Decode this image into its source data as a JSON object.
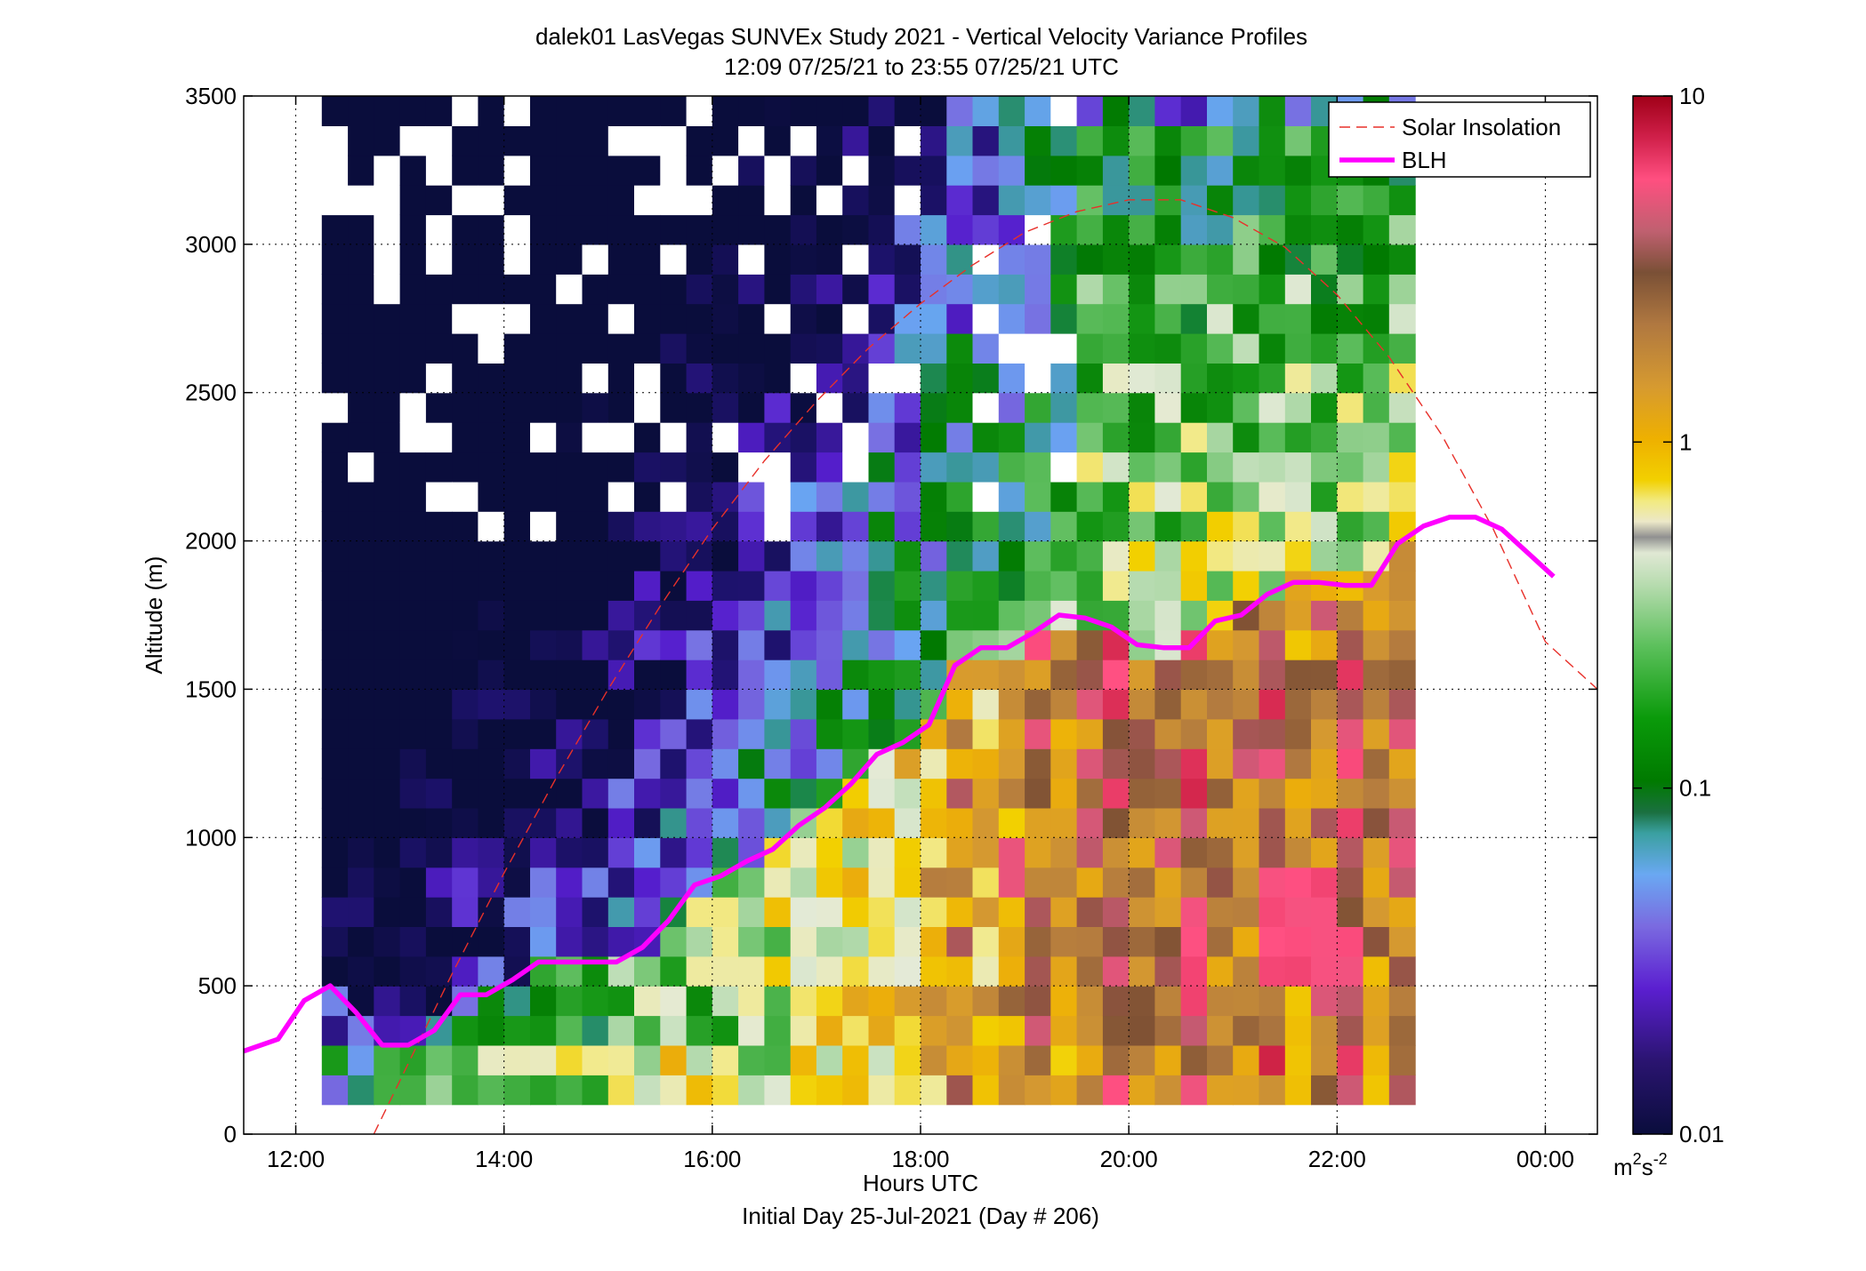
{
  "chart_data": {
    "type": "heatmap",
    "title": "dalek01 LasVegas SUNVEx Study 2021 - Vertical Velocity Variance Profiles",
    "subtitle": "12:09 07/25/21 to 23:55 07/25/21  UTC",
    "xlabel": "Hours UTC",
    "xlabel2": "Initial Day 25-Jul-2021 (Day # 206)",
    "ylabel": "Altitude (m)",
    "xlim": [
      11.5,
      24.5
    ],
    "ylim": [
      0,
      3500
    ],
    "x_ticks": [
      12,
      14,
      16,
      18,
      20,
      22,
      24
    ],
    "x_tick_labels": [
      "12:00",
      "14:00",
      "16:00",
      "18:00",
      "20:00",
      "22:00",
      "00:00"
    ],
    "y_ticks": [
      0,
      500,
      1000,
      1500,
      2000,
      2500,
      3000,
      3500
    ],
    "y_tick_labels": [
      "0",
      "500",
      "1000",
      "1500",
      "2000",
      "2500",
      "3000",
      "3500"
    ],
    "grid": true,
    "legend_position": "top-right",
    "legend": [
      {
        "name": "Solar Insolation",
        "color": "#e8302a",
        "style": "dashed"
      },
      {
        "name": "BLH",
        "color": "#ff00ff",
        "style": "solid"
      }
    ],
    "colorbar": {
      "scale": "log",
      "range": [
        0.01,
        10
      ],
      "tick_values": [
        0.01,
        0.1,
        1,
        10
      ],
      "tick_labels": [
        "0.01",
        "0.1",
        "1",
        "10"
      ],
      "unit_base": "m",
      "unit_sup1": "2",
      "unit_mid": "s",
      "unit_sup2": "-2"
    },
    "blh": {
      "name": "BLH",
      "x": [
        11.5,
        11.83,
        12.08,
        12.33,
        12.58,
        12.83,
        13.08,
        13.33,
        13.58,
        13.83,
        14.08,
        14.33,
        14.58,
        14.83,
        15.08,
        15.33,
        15.58,
        15.83,
        16.08,
        16.33,
        16.58,
        16.83,
        17.08,
        17.33,
        17.58,
        17.83,
        18.08,
        18.33,
        18.58,
        18.83,
        19.08,
        19.33,
        19.58,
        19.83,
        20.08,
        20.33,
        20.58,
        20.83,
        21.08,
        21.33,
        21.58,
        21.83,
        22.08,
        22.33,
        22.58,
        22.83,
        23.08,
        23.33,
        23.58,
        23.83,
        24.08
      ],
      "y": [
        280,
        320,
        450,
        500,
        410,
        300,
        300,
        350,
        470,
        470,
        520,
        580,
        580,
        580,
        580,
        630,
        720,
        840,
        870,
        920,
        960,
        1040,
        1100,
        1180,
        1280,
        1320,
        1380,
        1580,
        1640,
        1640,
        1690,
        1750,
        1740,
        1710,
        1650,
        1640,
        1640,
        1730,
        1750,
        1820,
        1860,
        1860,
        1850,
        1850,
        1990,
        2050,
        2080,
        2080,
        2040,
        1960,
        1880
      ]
    },
    "solar_insolation": {
      "name": "Solar Insolation",
      "x": [
        12.75,
        13.0,
        13.5,
        14.0,
        14.5,
        15.0,
        15.5,
        16.0,
        16.5,
        17.0,
        17.5,
        18.0,
        18.5,
        19.0,
        19.5,
        20.0,
        20.5,
        21.0,
        21.5,
        22.0,
        22.5,
        23.0,
        23.5,
        24.0,
        24.5
      ],
      "y": [
        0,
        180,
        540,
        880,
        1200,
        1500,
        1780,
        2040,
        2270,
        2470,
        2650,
        2800,
        2930,
        3040,
        3110,
        3150,
        3150,
        3090,
        2990,
        2830,
        2620,
        2360,
        2040,
        1660,
        1500
      ]
    },
    "variance_grid": {
      "x_start": 12.25,
      "dx": 0.25,
      "y_start": 100,
      "dy": 100,
      "columns": 42,
      "rows": 34,
      "value_description": "log10 of vertical velocity variance, estimated from pixel colors"
    }
  },
  "colors": {
    "background": "#ffffff",
    "axes_frame": "#000000",
    "grid": "#000000",
    "blh_line": "#ff00ff",
    "solar_line": "#e8302a",
    "missing_data": "#ffffff"
  }
}
